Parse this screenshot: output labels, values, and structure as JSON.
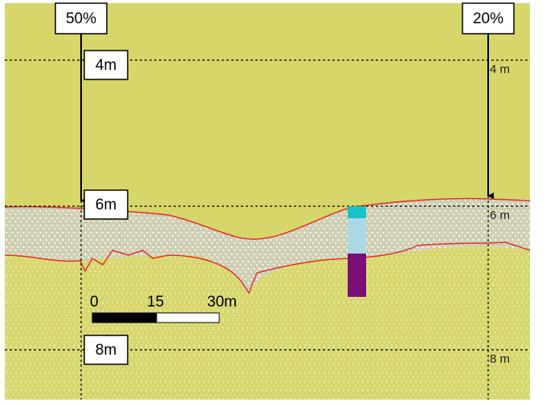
{
  "top_labels": [
    "50%",
    "20%"
  ],
  "depth_left": [
    "4m",
    "6m",
    "8m"
  ],
  "depth_right": [
    "4 m",
    "6 m",
    "8 m"
  ],
  "scale": [
    "0",
    "15",
    "30m"
  ]
}
